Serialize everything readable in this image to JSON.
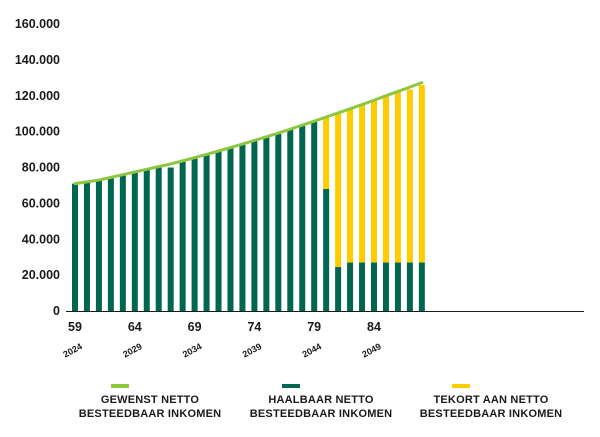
{
  "chart_data": {
    "type": "bar",
    "x": [
      59,
      60,
      61,
      62,
      63,
      64,
      65,
      66,
      67,
      68,
      69,
      70,
      71,
      72,
      73,
      74,
      75,
      76,
      77,
      78,
      79,
      80,
      81,
      82,
      83,
      84,
      85,
      86,
      87,
      88
    ],
    "x_ticks": [
      "59",
      "64",
      "69",
      "74",
      "79",
      "84"
    ],
    "year_ticks": [
      "2024",
      "2029",
      "2034",
      "2039",
      "2044",
      "2049"
    ],
    "y_ticks": [
      "0",
      "20.000",
      "40.000",
      "60.000",
      "80.000",
      "100.000",
      "120.000",
      "140.000",
      "160.000"
    ],
    "ylim": [
      0,
      160000
    ],
    "series": [
      {
        "name": "GEWENST NETTO BESTEEDBAAR INKOMEN",
        "kind": "line",
        "color": "#8dc63f",
        "values": [
          71000,
          72000,
          73000,
          74500,
          76000,
          77500,
          79000,
          80500,
          82000,
          83700,
          85500,
          87300,
          89200,
          91100,
          93100,
          95100,
          97100,
          99200,
          101400,
          103600,
          105800,
          108100,
          110400,
          112700,
          115100,
          117500,
          120000,
          122400,
          124800,
          127300
        ]
      },
      {
        "name": "HAALBAAR NETTO BESTEEDBAAR INKOMEN",
        "kind": "bar",
        "color": "#00664f",
        "values": [
          71000,
          72000,
          73000,
          74000,
          75500,
          77500,
          79000,
          80000,
          80000,
          83500,
          85500,
          87500,
          89500,
          91000,
          93000,
          95000,
          97000,
          99500,
          101500,
          103500,
          105500,
          68000,
          24500,
          27000,
          27000,
          27000,
          27000,
          27000,
          27000,
          27000
        ]
      },
      {
        "name": "TEKORT AAN NETTO BESTEEDBAAR INKOMEN",
        "kind": "bar-stacked",
        "color": "#ffcc00",
        "values": [
          0,
          0,
          0,
          0,
          0,
          0,
          0,
          0,
          0,
          0,
          0,
          0,
          0,
          0,
          0,
          0,
          0,
          0,
          0,
          0,
          0,
          40000,
          86000,
          85500,
          88000,
          90500,
          93000,
          95500,
          96500,
          99000
        ]
      }
    ]
  },
  "legend": [
    {
      "label": "GEWENST NETTO\nBESTEEDBAAR INKOMEN",
      "color": "#8dc63f"
    },
    {
      "label": "HAALBAAR NETTO\nBESTEEDBAAR INKOMEN",
      "color": "#00664f"
    },
    {
      "label": "TEKORT AAN NETTO\nBESTEEDBAAR INKOMEN",
      "color": "#ffcc00"
    }
  ]
}
